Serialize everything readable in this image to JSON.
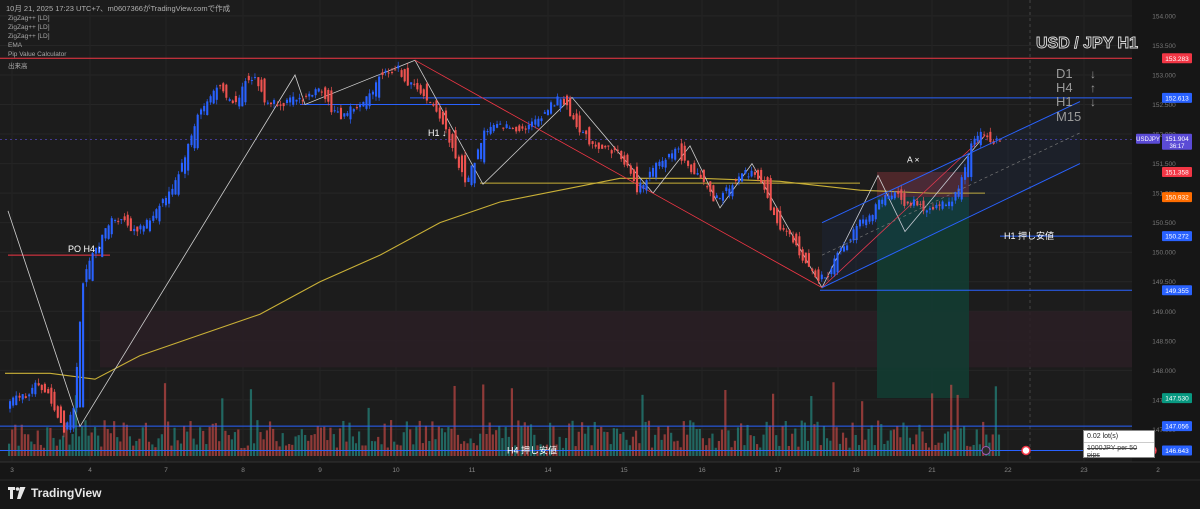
{
  "header": {
    "text": "10月 21, 2025 17:23 UTC+7、m0607366がTradingView.comで作成"
  },
  "indicators": [
    "ZigZag++ [LD]",
    "ZigZag++ [LD]",
    "ZigZag++ [LD]",
    "EMA",
    "Pip Value Calculator",
    "出来高"
  ],
  "symbol_title": "USD / JPY H1",
  "timeframes": [
    {
      "label": "D1",
      "arrow": "↓"
    },
    {
      "label": "H4",
      "arrow": "↑"
    },
    {
      "label": "H1",
      "arrow": "↓"
    },
    {
      "label": "M15",
      "arrow": ""
    }
  ],
  "annotations": {
    "po_h4": "PO H4 ↑",
    "h1_down": "H1 ↓",
    "h1_support": "H1 押し安値",
    "h4_support": "H4 押し安値",
    "a_marker": "A ×"
  },
  "lot_box": {
    "line1": "0.02 lot(s)",
    "line2": "1000JPY per 50 pips"
  },
  "logo_text": "TradingView",
  "colors": {
    "up": "#2962ff",
    "down": "#ef5350",
    "vol_up": "#26a69a",
    "vol_down": "#ef5350",
    "ema": "#c9b037",
    "zigzag": "#d0d0d0",
    "channel": "#2962ff",
    "resistance": "#f23645"
  },
  "chart_data": {
    "type": "candlestick",
    "symbol": "USDJPY",
    "timeframe": "H1",
    "x_ticks": [
      "3",
      "4",
      "7",
      "8",
      "9",
      "10",
      "11",
      "14",
      "15",
      "16",
      "17",
      "18",
      "21",
      "22",
      "23",
      "2"
    ],
    "y_ticks": [
      "154.000",
      "153.500",
      "153.000",
      "152.500",
      "152.000",
      "151.500",
      "151.000",
      "150.500",
      "150.000",
      "149.500",
      "149.000",
      "148.500",
      "148.000",
      "147.500",
      "147.000"
    ],
    "ylim": [
      146.55,
      154.1
    ],
    "price_labels": [
      {
        "text": "153.283",
        "value": 153.283,
        "bg": "#f23645"
      },
      {
        "text": "152.613",
        "value": 152.613,
        "bg": "#2962ff"
      },
      {
        "text": "151.358",
        "value": 151.358,
        "bg": "#f23645"
      },
      {
        "text": "150.932",
        "value": 150.932,
        "bg": "#ff6d00"
      },
      {
        "text": "150.272",
        "value": 150.272,
        "bg": "#2962ff"
      },
      {
        "text": "149.355",
        "value": 149.355,
        "bg": "#2962ff"
      },
      {
        "text": "147.530",
        "value": 147.53,
        "bg": "#089981"
      },
      {
        "text": "147.056",
        "value": 147.056,
        "bg": "#2962ff"
      },
      {
        "text": "146.643",
        "value": 146.643,
        "bg": "#2962ff"
      }
    ],
    "current_price": {
      "symbol": "USDJPY",
      "price": "151.904",
      "countdown": "36:17",
      "value": 151.904
    },
    "key_points": [
      {
        "t": 0,
        "p": 147.4
      },
      {
        "t": 3.5,
        "p": 147.85
      },
      {
        "t": 5.9,
        "p": 147.05
      },
      {
        "t": 7.8,
        "p": 147.55
      },
      {
        "t": 8.0,
        "p": 149.5
      },
      {
        "t": 9.5,
        "p": 150.2
      },
      {
        "t": 11.5,
        "p": 150.6
      },
      {
        "t": 14,
        "p": 150.4
      },
      {
        "t": 16.5,
        "p": 150.9
      },
      {
        "t": 18.5,
        "p": 151.5
      },
      {
        "t": 20,
        "p": 152.4
      },
      {
        "t": 21.8,
        "p": 152.8
      },
      {
        "t": 23.5,
        "p": 152.4
      },
      {
        "t": 25.4,
        "p": 153.1
      },
      {
        "t": 26.8,
        "p": 152.6
      },
      {
        "t": 29.5,
        "p": 152.5
      },
      {
        "t": 32.5,
        "p": 152.8
      },
      {
        "t": 34.5,
        "p": 152.3
      },
      {
        "t": 37,
        "p": 152.5
      },
      {
        "t": 39,
        "p": 152.95
      },
      {
        "t": 40.7,
        "p": 153.2
      },
      {
        "t": 42.5,
        "p": 152.8
      },
      {
        "t": 44.5,
        "p": 152.5
      },
      {
        "t": 46.5,
        "p": 151.9
      },
      {
        "t": 48,
        "p": 151.15
      },
      {
        "t": 50,
        "p": 152.0
      },
      {
        "t": 52,
        "p": 152.2
      },
      {
        "t": 54,
        "p": 152.1
      },
      {
        "t": 56,
        "p": 152.4
      },
      {
        "t": 58,
        "p": 152.6
      },
      {
        "t": 60,
        "p": 152.0
      },
      {
        "t": 62,
        "p": 151.8
      },
      {
        "t": 64,
        "p": 151.7
      },
      {
        "t": 66,
        "p": 151.05
      },
      {
        "t": 68,
        "p": 151.5
      },
      {
        "t": 70,
        "p": 151.75
      },
      {
        "t": 72,
        "p": 151.4
      },
      {
        "t": 74.2,
        "p": 150.75
      },
      {
        "t": 76,
        "p": 151.1
      },
      {
        "t": 77.6,
        "p": 151.35
      },
      {
        "t": 79,
        "p": 151.2
      },
      {
        "t": 80.2,
        "p": 150.6
      },
      {
        "t": 82,
        "p": 150.3
      },
      {
        "t": 84,
        "p": 149.75
      },
      {
        "t": 85.7,
        "p": 149.45
      },
      {
        "t": 87,
        "p": 150.0
      },
      {
        "t": 89,
        "p": 150.4
      },
      {
        "t": 91,
        "p": 150.8
      },
      {
        "t": 93,
        "p": 151.05
      },
      {
        "t": 95,
        "p": 150.75
      },
      {
        "t": 97,
        "p": 150.7
      },
      {
        "t": 99,
        "p": 150.9
      },
      {
        "t": 100,
        "p": 151.3
      },
      {
        "t": 101.3,
        "p": 151.95
      }
    ]
  }
}
